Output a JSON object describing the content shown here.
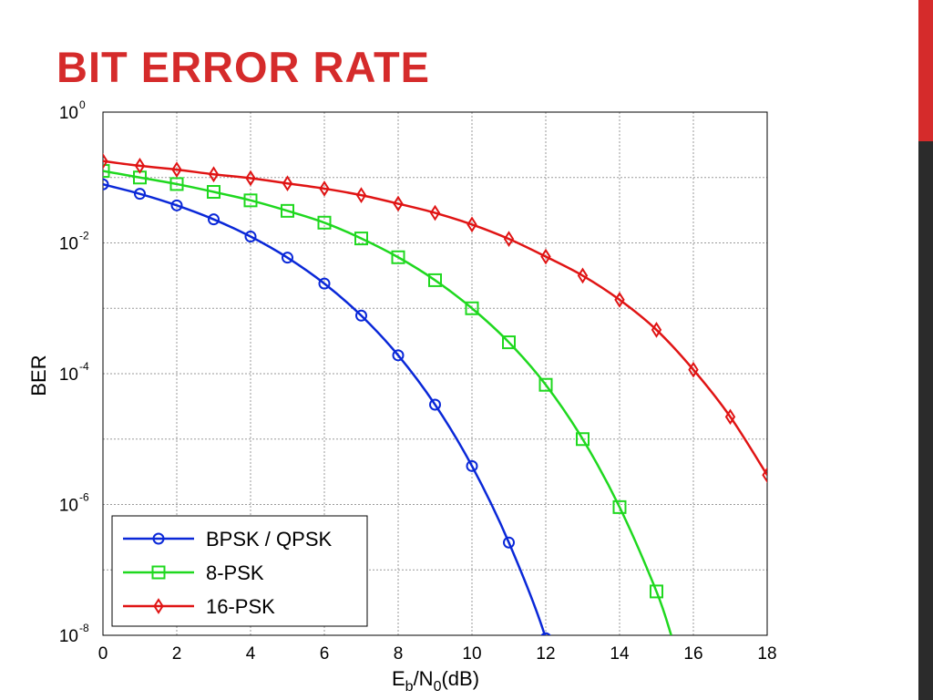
{
  "slide": {
    "title": "BIT ERROR RATE"
  },
  "colors": {
    "title": "#d52b2b",
    "accent_top": "#d52b2b",
    "accent_bottom": "#2b2b2b"
  },
  "chart_data": {
    "type": "line",
    "title": "",
    "xlabel": {
      "main": "E",
      "sub_b": "b",
      "mid": "/N",
      "sub_0": "0",
      "tail": "(dB)"
    },
    "ylabel": "BER",
    "y_scale": "log10",
    "xlim": [
      0,
      18
    ],
    "ylim": [
      1e-08,
      1
    ],
    "x_ticks": [
      0,
      2,
      4,
      6,
      8,
      10,
      12,
      14,
      16,
      18
    ],
    "y_ticks": [
      {
        "value": 1,
        "base": "10",
        "exp": "0"
      },
      {
        "value": 0.01,
        "base": "10",
        "exp": "-2"
      },
      {
        "value": 0.0001,
        "base": "10",
        "exp": "-4"
      },
      {
        "value": 1e-06,
        "base": "10",
        "exp": "-6"
      },
      {
        "value": 1e-08,
        "base": "10",
        "exp": "-8"
      }
    ],
    "grid": true,
    "legend": "bottom-left",
    "series": [
      {
        "name": "BPSK / QPSK",
        "color": "#0a28d8",
        "marker": "circle",
        "x": [
          0,
          1,
          2,
          3,
          4,
          5,
          6,
          7,
          8,
          9,
          10,
          11,
          12,
          12.5
        ],
        "y": [
          0.0786,
          0.0563,
          0.0375,
          0.0229,
          0.0125,
          0.00595,
          0.00239,
          0.000773,
          0.000191,
          3.36e-05,
          3.87e-06,
          2.62e-07,
          9.01e-09,
          5e-10
        ]
      },
      {
        "name": "8-PSK",
        "color": "#1fd81f",
        "marker": "square",
        "x": [
          0,
          1,
          2,
          3,
          4,
          5,
          6,
          7,
          8,
          9,
          10,
          11,
          12,
          13,
          14,
          15,
          15.4
        ],
        "y": [
          0.126,
          0.1,
          0.0794,
          0.0603,
          0.0447,
          0.0309,
          0.0204,
          0.0117,
          0.00603,
          0.00269,
          0.001,
          0.000302,
          6.76e-05,
          1e-05,
          9.12e-07,
          4.68e-08,
          1e-08
        ]
      },
      {
        "name": "16-PSK",
        "color": "#e01414",
        "marker": "diamond",
        "x": [
          0,
          1,
          2,
          3,
          4,
          5,
          6,
          7,
          8,
          9,
          10,
          11,
          12,
          13,
          14,
          15,
          16,
          17,
          18
        ],
        "y": [
          0.178,
          0.151,
          0.132,
          0.112,
          0.0977,
          0.0813,
          0.0676,
          0.0537,
          0.0398,
          0.0288,
          0.0191,
          0.0115,
          0.00617,
          0.00316,
          0.00135,
          0.000468,
          0.000115,
          2.19e-05,
          2.82e-06
        ]
      }
    ]
  }
}
